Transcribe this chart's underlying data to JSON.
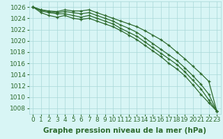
{
  "x": [
    0,
    1,
    2,
    3,
    4,
    5,
    6,
    7,
    8,
    9,
    10,
    11,
    12,
    13,
    14,
    15,
    16,
    17,
    18,
    19,
    20,
    21,
    22,
    23
  ],
  "lines": [
    [
      1026,
      1025.5,
      1025.3,
      1025.2,
      1025.5,
      1025.3,
      1025.3,
      1025.5,
      1025.0,
      1024.5,
      1024.0,
      1023.5,
      1023.0,
      1022.5,
      1021.8,
      1021.0,
      1020.2,
      1019.2,
      1018.0,
      1016.8,
      1015.5,
      1014.2,
      1012.8,
      1007.5
    ],
    [
      1026,
      1025.5,
      1025.2,
      1025.0,
      1025.2,
      1025.0,
      1024.8,
      1025.0,
      1024.5,
      1024.0,
      1023.5,
      1022.8,
      1022.2,
      1021.5,
      1020.5,
      1019.5,
      1018.5,
      1017.5,
      1016.5,
      1015.2,
      1013.8,
      1012.3,
      1010.5,
      1007.5
    ],
    [
      1026,
      1025.3,
      1025.0,
      1024.8,
      1024.8,
      1024.5,
      1024.2,
      1024.5,
      1024.0,
      1023.5,
      1023.0,
      1022.2,
      1021.5,
      1020.8,
      1019.8,
      1018.8,
      1017.8,
      1016.8,
      1015.8,
      1014.5,
      1013.0,
      1011.5,
      1009.5,
      1007.5
    ],
    [
      1026,
      1025.0,
      1024.5,
      1024.2,
      1024.5,
      1024.0,
      1023.8,
      1024.0,
      1023.5,
      1023.0,
      1022.5,
      1021.8,
      1021.0,
      1020.2,
      1019.2,
      1018.2,
      1017.2,
      1016.0,
      1015.0,
      1013.8,
      1012.2,
      1010.5,
      1009.0,
      1007.5
    ]
  ],
  "line_color": "#2d6a2d",
  "marker": "+",
  "bg_color": "#d8f5f5",
  "grid_color": "#a8d8d8",
  "ylabel_ticks": [
    1008,
    1010,
    1012,
    1014,
    1016,
    1018,
    1020,
    1022,
    1024,
    1026
  ],
  "xlabel": "Graphe pression niveau de la mer (hPa)",
  "ylim": [
    1007,
    1027
  ],
  "xlim": [
    -0.5,
    23.5
  ],
  "tick_fontsize": 6.5,
  "xlabel_fontsize": 7.5,
  "marker_size": 3,
  "linewidth": 0.9
}
